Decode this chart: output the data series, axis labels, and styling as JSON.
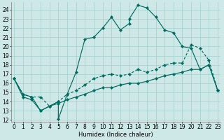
{
  "xlabel": "Humidex (Indice chaleur)",
  "bg_color": "#cde8e6",
  "line_color": "#006b60",
  "grid_color": "#a8d4d0",
  "xlim": [
    -0.3,
    23.3
  ],
  "ylim": [
    11.8,
    24.8
  ],
  "yticks": [
    12,
    13,
    14,
    15,
    16,
    17,
    18,
    19,
    20,
    21,
    22,
    23,
    24
  ],
  "xticks": [
    0,
    1,
    2,
    3,
    4,
    5,
    6,
    7,
    8,
    9,
    10,
    11,
    12,
    13,
    14,
    15,
    16,
    17,
    18,
    19,
    20,
    21,
    22,
    23
  ],
  "line1_x": [
    0,
    1,
    2,
    3,
    4,
    5,
    5,
    6,
    7,
    8,
    9,
    10,
    11,
    12,
    13,
    13,
    14,
    15,
    16,
    17,
    18,
    19,
    20,
    21,
    22,
    23
  ],
  "line1_y": [
    16.5,
    14.8,
    14.5,
    13.0,
    13.5,
    14.0,
    12.1,
    14.8,
    17.2,
    20.8,
    21.0,
    22.0,
    23.2,
    21.8,
    22.5,
    23.0,
    24.5,
    24.2,
    23.2,
    21.8,
    21.5,
    20.0,
    19.8,
    17.5,
    18.0,
    15.2
  ],
  "line2_x": [
    0,
    1,
    2,
    3,
    4,
    5,
    6,
    7,
    8,
    9,
    10,
    11,
    12,
    13,
    14,
    15,
    16,
    17,
    18,
    19,
    20,
    21,
    22,
    23
  ],
  "line2_y": [
    16.5,
    14.8,
    14.5,
    14.5,
    13.5,
    14.0,
    14.8,
    15.2,
    15.8,
    16.5,
    16.8,
    17.0,
    16.8,
    17.0,
    17.5,
    17.2,
    17.5,
    18.0,
    18.2,
    18.2,
    20.2,
    19.8,
    18.5,
    15.2
  ],
  "line3_x": [
    0,
    1,
    2,
    3,
    4,
    5,
    6,
    7,
    8,
    9,
    10,
    11,
    12,
    13,
    14,
    15,
    16,
    17,
    18,
    19,
    20,
    21,
    22,
    23
  ],
  "line3_y": [
    16.5,
    14.5,
    14.2,
    13.0,
    13.5,
    13.8,
    14.2,
    14.5,
    14.8,
    15.2,
    15.5,
    15.5,
    15.8,
    16.0,
    16.0,
    16.2,
    16.5,
    16.8,
    17.0,
    17.2,
    17.5,
    17.5,
    18.0,
    15.2
  ]
}
